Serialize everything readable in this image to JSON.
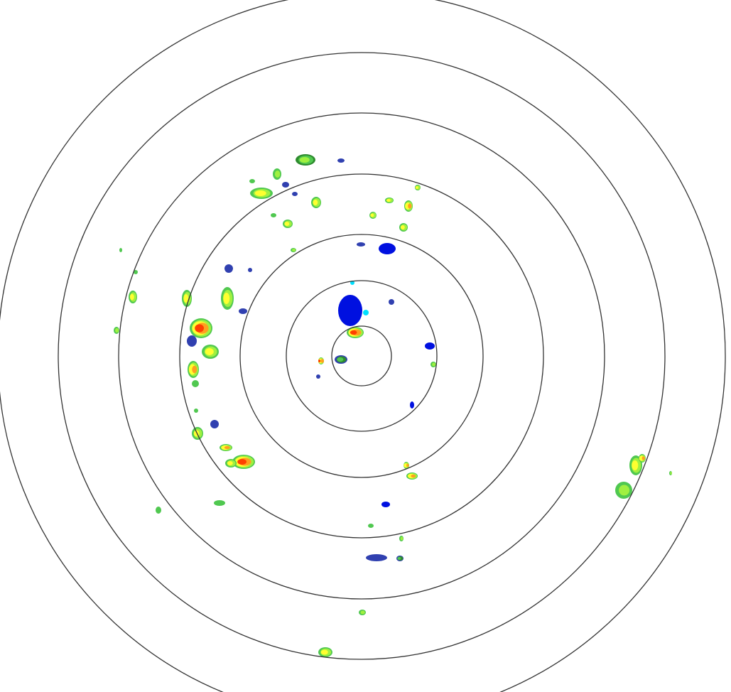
{
  "radar": {
    "ring_count": 7,
    "colors": {
      "ring": "#333333",
      "background": "#ffffff",
      "reflectivity": [
        "#00e0ff",
        "#0010e0",
        "#3040b0",
        "#2e8b2e",
        "#50c850",
        "#a0f040",
        "#ffff30",
        "#ffa020",
        "#ff4000"
      ]
    }
  }
}
